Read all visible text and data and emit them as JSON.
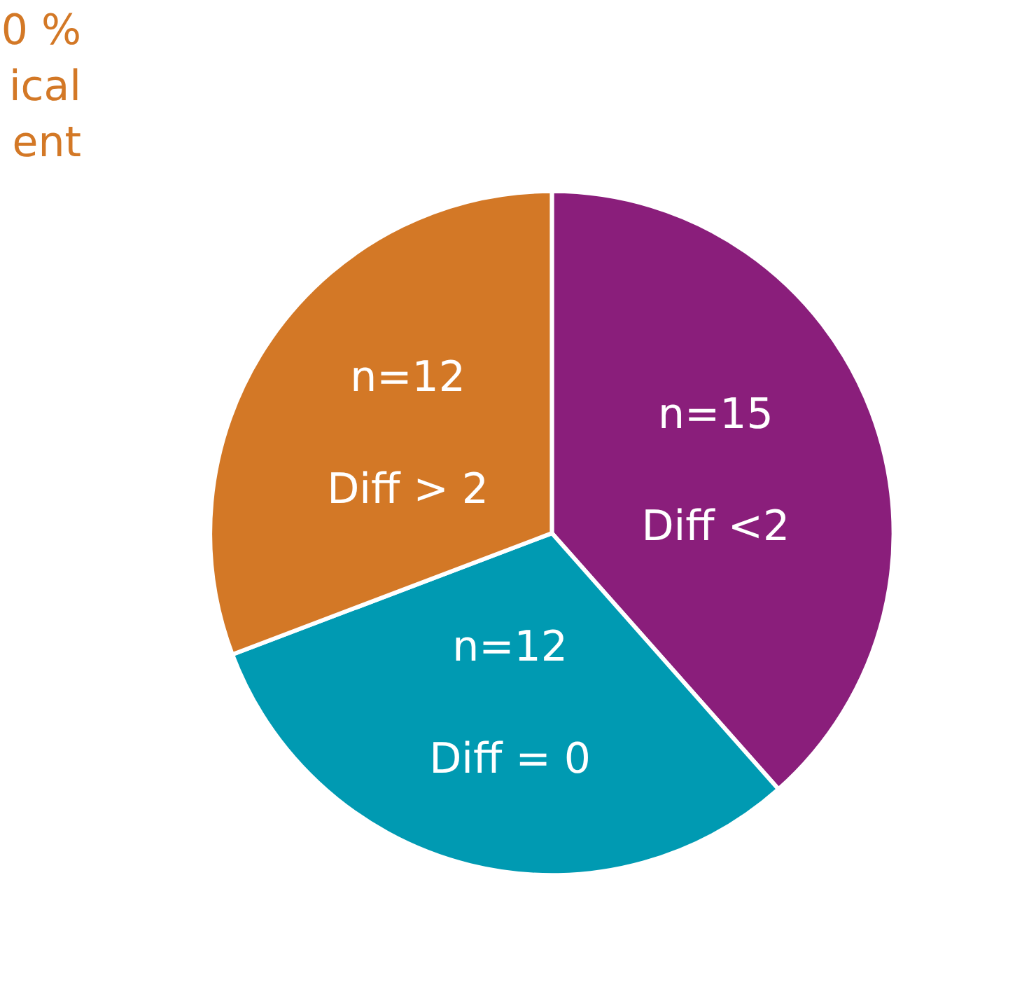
{
  "chart_data": {
    "type": "pie",
    "categories": [
      "Diff <2",
      "Diff = 0",
      "Diff > 2"
    ],
    "values": [
      15,
      12,
      12
    ],
    "value_labels": [
      "n=15",
      "n=12",
      "n=12"
    ],
    "colors": [
      "#8a1e7b",
      "#009ab2",
      "#d37826"
    ],
    "annotations": [
      "0 %\nical\nent"
    ],
    "legend": false
  }
}
